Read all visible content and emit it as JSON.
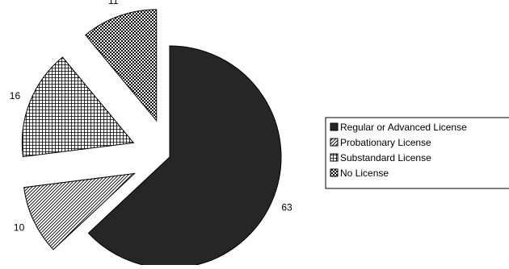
{
  "chart_data": {
    "type": "pie",
    "title": "",
    "categories": [
      "Regular or Advanced License",
      "Probationary License",
      "Substandard License",
      "No License"
    ],
    "values": [
      63,
      10,
      16,
      11
    ],
    "exploded": [
      false,
      true,
      true,
      true
    ],
    "start_angle_deg": 0,
    "direction": "clockwise",
    "legend_position": "right",
    "colors": [
      "#262626",
      "#ffffff",
      "#ffffff",
      "#ffffff"
    ],
    "fill_patterns": [
      "solid-dark",
      "diagonal-hatch",
      "grid",
      "checkerboard"
    ]
  }
}
